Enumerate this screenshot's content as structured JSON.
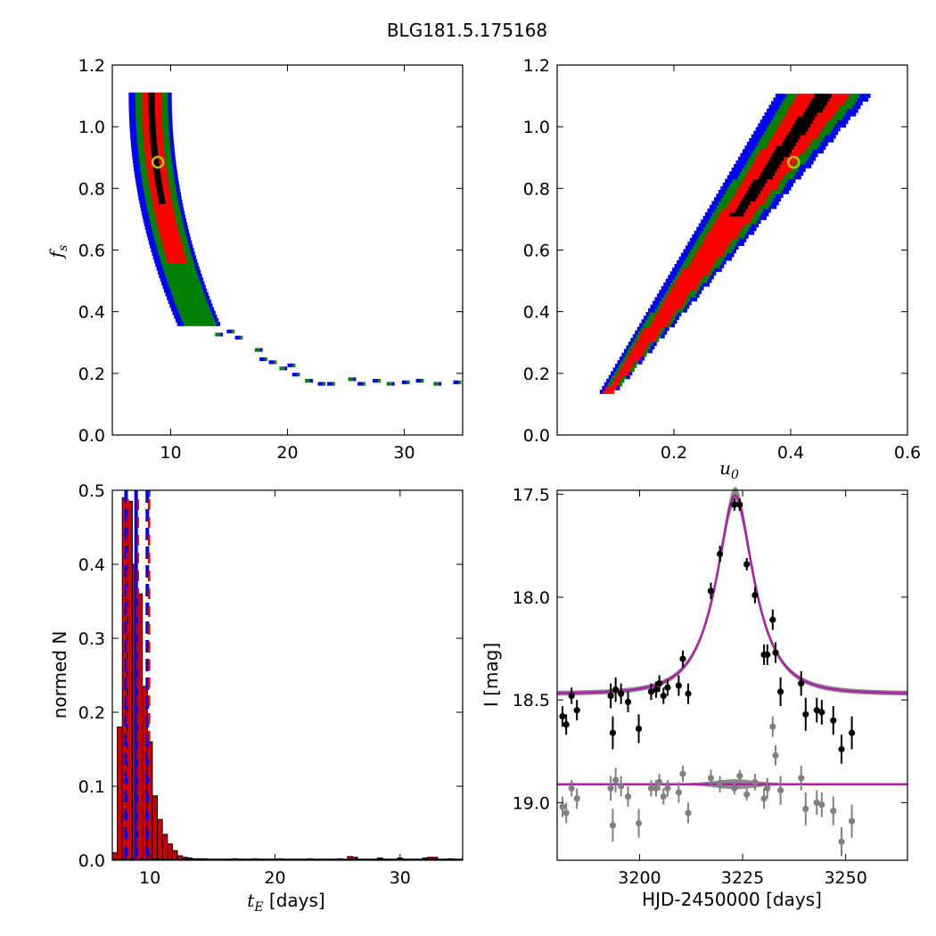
{
  "figure_title": "BLG181.5.175168",
  "colors": {
    "cell_blue": "#0000ff",
    "cell_green": "#008000",
    "cell_red": "#ff0000",
    "cell_black": "#000000",
    "marker_ring": "#bfbf00",
    "hist_fill": "#cc0000",
    "vline_blue": "#0000ff",
    "vline_red": "#cc0000",
    "model_magenta": "#aa22aa",
    "band_gray": "#808080",
    "data_black": "#000000",
    "data_gray": "#808080"
  },
  "chart_data": [
    {
      "id": "tE_vs_fs",
      "type": "heatmap",
      "title": "",
      "xlabel": "",
      "ylabel": "f_s",
      "xlim": [
        5,
        35
      ],
      "ylim": [
        0.0,
        1.2
      ],
      "xticks": [
        "10",
        "20",
        "30"
      ],
      "yticks": [
        "0.0",
        "0.2",
        "0.4",
        "0.6",
        "0.8",
        "1.0",
        "1.2"
      ],
      "levels": [
        "blue",
        "green",
        "red",
        "black"
      ],
      "best_fit": {
        "tE": 8.9,
        "fs": 0.885
      },
      "tail_points": [
        {
          "x": 13.8,
          "y": 0.32
        },
        {
          "x": 14.8,
          "y": 0.33
        },
        {
          "x": 15.5,
          "y": 0.31
        },
        {
          "x": 17.2,
          "y": 0.27
        },
        {
          "x": 17.6,
          "y": 0.24
        },
        {
          "x": 18.4,
          "y": 0.23
        },
        {
          "x": 19.3,
          "y": 0.21
        },
        {
          "x": 20.0,
          "y": 0.22
        },
        {
          "x": 20.4,
          "y": 0.19
        },
        {
          "x": 21.5,
          "y": 0.17
        },
        {
          "x": 22.6,
          "y": 0.16
        },
        {
          "x": 23.4,
          "y": 0.16
        },
        {
          "x": 25.2,
          "y": 0.175
        },
        {
          "x": 26.0,
          "y": 0.16
        },
        {
          "x": 27.3,
          "y": 0.17
        },
        {
          "x": 28.5,
          "y": 0.16
        },
        {
          "x": 29.8,
          "y": 0.165
        },
        {
          "x": 31.0,
          "y": 0.17
        },
        {
          "x": 32.5,
          "y": 0.16
        },
        {
          "x": 34.2,
          "y": 0.165
        }
      ]
    },
    {
      "id": "u0_vs_fs",
      "type": "heatmap",
      "title": "",
      "xlabel": "u_0",
      "ylabel": "",
      "xlim": [
        0.0,
        0.6
      ],
      "ylim": [
        0.0,
        1.2
      ],
      "xticks": [
        "0.2",
        "0.4",
        "0.6"
      ],
      "yticks": [
        "0.0",
        "0.2",
        "0.4",
        "0.6",
        "0.8",
        "1.0",
        "1.2"
      ],
      "levels": [
        "blue",
        "green",
        "red",
        "black"
      ],
      "best_fit": {
        "u0": 0.405,
        "fs": 0.885
      }
    },
    {
      "id": "tE_histogram",
      "type": "bar",
      "title": "",
      "xlabel": "t_E [days]",
      "ylabel": "normed N",
      "xlim": [
        7,
        35
      ],
      "ylim": [
        0.0,
        0.5
      ],
      "xticks": [
        "10",
        "20",
        "30"
      ],
      "yticks": [
        "0.0",
        "0.1",
        "0.2",
        "0.3",
        "0.4",
        "0.5"
      ],
      "bin_width": 0.4,
      "bins_start": [
        7.0,
        7.4,
        7.8,
        8.2,
        8.6,
        9.0,
        9.4,
        9.8,
        10.2,
        10.6,
        11.0,
        11.4,
        11.8,
        12.2,
        12.6,
        13.0,
        13.4,
        13.8,
        14.2,
        14.6,
        15.0
      ],
      "values": [
        0.01,
        0.18,
        0.49,
        0.485,
        0.4,
        0.36,
        0.235,
        0.16,
        0.087,
        0.055,
        0.035,
        0.022,
        0.013,
        0.006,
        0.004,
        0.003,
        0.002,
        0.002,
        0.002,
        0.001,
        0.001
      ],
      "tail_bins": [
        {
          "x": 16.6,
          "v": 0.002
        },
        {
          "x": 18.2,
          "v": 0.002
        },
        {
          "x": 20.2,
          "v": 0.002
        },
        {
          "x": 22.6,
          "v": 0.002
        },
        {
          "x": 25.0,
          "v": 0.002
        },
        {
          "x": 25.8,
          "v": 0.005
        },
        {
          "x": 26.2,
          "v": 0.004
        },
        {
          "x": 28.2,
          "v": 0.003
        },
        {
          "x": 29.8,
          "v": 0.003
        },
        {
          "x": 31.8,
          "v": 0.003
        },
        {
          "x": 32.2,
          "v": 0.004
        },
        {
          "x": 32.6,
          "v": 0.004
        },
        {
          "x": 33.8,
          "v": 0.002
        }
      ],
      "vlines_blue_dashed": [
        8.1,
        9.8
      ],
      "vlines_blue_solid": [
        8.9
      ],
      "vlines_red_dashed": [
        8.1,
        8.9,
        9.8
      ]
    },
    {
      "id": "lightcurve",
      "type": "scatter",
      "title": "",
      "xlabel": "HJD-2450000 [days]",
      "ylabel": "I [mag]",
      "xlim": [
        3180,
        3265
      ],
      "ylim": [
        19.28,
        17.48
      ],
      "xticks": [
        "3200",
        "3225",
        "3250"
      ],
      "yticks": [
        "17.5",
        "18.0",
        "18.5",
        "19.0"
      ],
      "model": {
        "t0": 3223.2,
        "tE": 8.9,
        "u0": 0.405,
        "fs": 0.885,
        "baseline": 18.47,
        "residual_line": 18.91
      },
      "data_black": [
        {
          "x": 3181.3,
          "y": 18.58,
          "e": 0.05
        },
        {
          "x": 3182.2,
          "y": 18.62,
          "e": 0.05
        },
        {
          "x": 3183.5,
          "y": 18.48,
          "e": 0.04
        },
        {
          "x": 3184.8,
          "y": 18.55,
          "e": 0.05
        },
        {
          "x": 3193.0,
          "y": 18.48,
          "e": 0.06
        },
        {
          "x": 3193.5,
          "y": 18.66,
          "e": 0.08
        },
        {
          "x": 3194.2,
          "y": 18.45,
          "e": 0.06
        },
        {
          "x": 3195.5,
          "y": 18.47,
          "e": 0.05
        },
        {
          "x": 3197.2,
          "y": 18.51,
          "e": 0.05
        },
        {
          "x": 3199.8,
          "y": 18.64,
          "e": 0.07
        },
        {
          "x": 3202.8,
          "y": 18.46,
          "e": 0.04
        },
        {
          "x": 3204.0,
          "y": 18.45,
          "e": 0.04
        },
        {
          "x": 3204.8,
          "y": 18.42,
          "e": 0.04
        },
        {
          "x": 3205.8,
          "y": 18.48,
          "e": 0.04
        },
        {
          "x": 3206.8,
          "y": 18.44,
          "e": 0.04
        },
        {
          "x": 3209.5,
          "y": 18.43,
          "e": 0.05
        },
        {
          "x": 3210.5,
          "y": 18.3,
          "e": 0.04
        },
        {
          "x": 3211.8,
          "y": 18.47,
          "e": 0.05
        },
        {
          "x": 3217.3,
          "y": 17.97,
          "e": 0.04
        },
        {
          "x": 3219.5,
          "y": 17.79,
          "e": 0.04
        },
        {
          "x": 3223.0,
          "y": 17.55,
          "e": 0.03
        },
        {
          "x": 3224.3,
          "y": 17.55,
          "e": 0.03
        },
        {
          "x": 3226.0,
          "y": 17.84,
          "e": 0.03
        },
        {
          "x": 3228.0,
          "y": 17.99,
          "e": 0.04
        },
        {
          "x": 3230.2,
          "y": 18.28,
          "e": 0.05
        },
        {
          "x": 3231.0,
          "y": 18.28,
          "e": 0.05
        },
        {
          "x": 3232.3,
          "y": 18.11,
          "e": 0.05
        },
        {
          "x": 3233.0,
          "y": 18.27,
          "e": 0.05
        },
        {
          "x": 3234.2,
          "y": 18.46,
          "e": 0.07
        },
        {
          "x": 3239.2,
          "y": 18.42,
          "e": 0.06
        },
        {
          "x": 3240.3,
          "y": 18.57,
          "e": 0.08
        },
        {
          "x": 3243.0,
          "y": 18.55,
          "e": 0.06
        },
        {
          "x": 3244.2,
          "y": 18.56,
          "e": 0.06
        },
        {
          "x": 3247.0,
          "y": 18.6,
          "e": 0.07
        },
        {
          "x": 3249.0,
          "y": 18.74,
          "e": 0.07
        },
        {
          "x": 3251.5,
          "y": 18.66,
          "e": 0.08
        }
      ],
      "data_gray": [
        {
          "x": 3181.3,
          "y": 19.02,
          "e": 0.05
        },
        {
          "x": 3182.2,
          "y": 19.05,
          "e": 0.05
        },
        {
          "x": 3183.5,
          "y": 18.93,
          "e": 0.04
        },
        {
          "x": 3184.8,
          "y": 18.98,
          "e": 0.05
        },
        {
          "x": 3193.0,
          "y": 18.93,
          "e": 0.06
        },
        {
          "x": 3193.5,
          "y": 19.11,
          "e": 0.08
        },
        {
          "x": 3194.2,
          "y": 18.89,
          "e": 0.06
        },
        {
          "x": 3195.5,
          "y": 18.92,
          "e": 0.05
        },
        {
          "x": 3197.2,
          "y": 18.97,
          "e": 0.05
        },
        {
          "x": 3199.8,
          "y": 19.1,
          "e": 0.07
        },
        {
          "x": 3202.8,
          "y": 18.93,
          "e": 0.04
        },
        {
          "x": 3204.0,
          "y": 18.93,
          "e": 0.04
        },
        {
          "x": 3204.8,
          "y": 18.9,
          "e": 0.04
        },
        {
          "x": 3205.8,
          "y": 18.97,
          "e": 0.04
        },
        {
          "x": 3206.8,
          "y": 18.93,
          "e": 0.04
        },
        {
          "x": 3209.5,
          "y": 18.95,
          "e": 0.05
        },
        {
          "x": 3210.5,
          "y": 18.86,
          "e": 0.04
        },
        {
          "x": 3211.8,
          "y": 19.05,
          "e": 0.05
        },
        {
          "x": 3217.3,
          "y": 18.88,
          "e": 0.04
        },
        {
          "x": 3219.5,
          "y": 18.91,
          "e": 0.04
        },
        {
          "x": 3223.0,
          "y": 18.93,
          "e": 0.03
        },
        {
          "x": 3224.3,
          "y": 18.87,
          "e": 0.03
        },
        {
          "x": 3226.0,
          "y": 18.96,
          "e": 0.03
        },
        {
          "x": 3228.0,
          "y": 18.9,
          "e": 0.04
        },
        {
          "x": 3230.2,
          "y": 18.98,
          "e": 0.05
        },
        {
          "x": 3231.0,
          "y": 18.93,
          "e": 0.05
        },
        {
          "x": 3232.3,
          "y": 18.63,
          "e": 0.05
        },
        {
          "x": 3233.0,
          "y": 18.77,
          "e": 0.05
        },
        {
          "x": 3234.2,
          "y": 18.94,
          "e": 0.07
        },
        {
          "x": 3239.2,
          "y": 18.88,
          "e": 0.06
        },
        {
          "x": 3240.3,
          "y": 19.03,
          "e": 0.08
        },
        {
          "x": 3243.0,
          "y": 19.0,
          "e": 0.06
        },
        {
          "x": 3244.2,
          "y": 19.01,
          "e": 0.06
        },
        {
          "x": 3247.0,
          "y": 19.04,
          "e": 0.07
        },
        {
          "x": 3249.0,
          "y": 19.19,
          "e": 0.07
        },
        {
          "x": 3251.5,
          "y": 19.09,
          "e": 0.08
        }
      ]
    }
  ]
}
